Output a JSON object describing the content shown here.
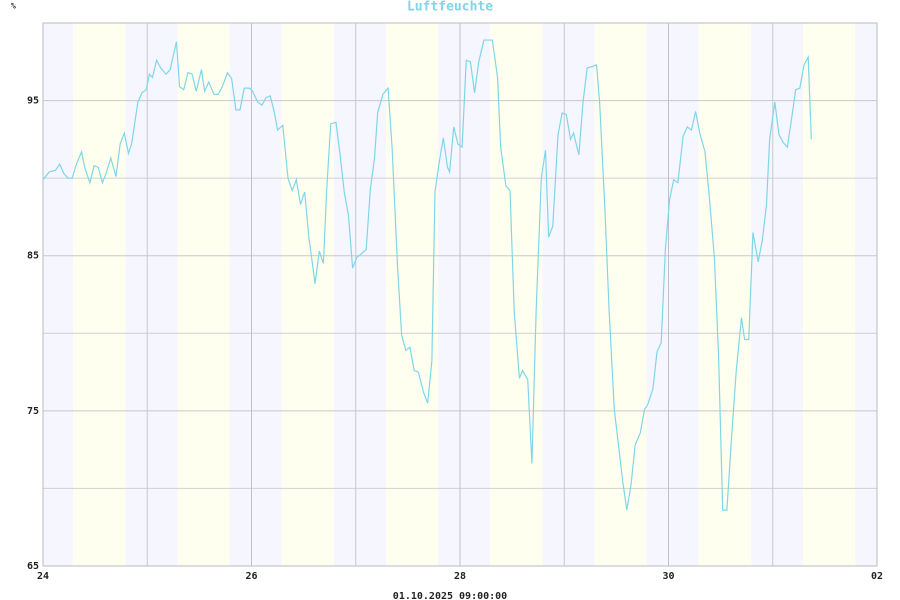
{
  "chart_data": {
    "type": "line",
    "title": "Luftfeuchte",
    "ylabel": "%",
    "xlabel": "01.10.2025 09:00:00",
    "color": "#7fd6e8",
    "grid": true,
    "xlim": [
      0,
      8
    ],
    "xticks": [
      {
        "value": 0,
        "label": "24"
      },
      {
        "value": 2,
        "label": "26"
      },
      {
        "value": 4,
        "label": "28"
      },
      {
        "value": 6,
        "label": "30"
      },
      {
        "value": 8,
        "label": "02"
      }
    ],
    "minor_xticks": [
      1,
      3,
      5,
      7
    ],
    "ylim": [
      65,
      100
    ],
    "yticks": [
      65,
      75,
      85,
      95
    ],
    "minor_yticks": [
      70,
      80,
      90
    ],
    "x": [
      0,
      0.06,
      0.12,
      0.16,
      0.2,
      0.24,
      0.28,
      0.32,
      0.37,
      0.4,
      0.45,
      0.49,
      0.53,
      0.57,
      0.61,
      0.65,
      0.7,
      0.74,
      0.78,
      0.82,
      0.85,
      0.91,
      0.95,
      0.99,
      1.02,
      1.05,
      1.09,
      1.13,
      1.18,
      1.22,
      1.28,
      1.31,
      1.35,
      1.39,
      1.43,
      1.47,
      1.52,
      1.55,
      1.59,
      1.64,
      1.68,
      1.72,
      1.77,
      1.81,
      1.85,
      1.89,
      1.93,
      1.98,
      2.01,
      2.06,
      2.1,
      2.14,
      2.18,
      2.22,
      2.25,
      2.3,
      2.35,
      2.39,
      2.43,
      2.47,
      2.51,
      2.55,
      2.61,
      2.65,
      2.69,
      2.72,
      2.76,
      2.81,
      2.85,
      2.89,
      2.93,
      2.97,
      3.01,
      3.05,
      3.1,
      3.14,
      3.18,
      3.21,
      3.26,
      3.31,
      3.35,
      3.4,
      3.44,
      3.48,
      3.52,
      3.56,
      3.6,
      3.65,
      3.69,
      3.73,
      3.76,
      3.8,
      3.84,
      3.88,
      3.9,
      3.94,
      3.98,
      4.02,
      4.06,
      4.1,
      4.14,
      4.18,
      4.23,
      4.27,
      4.31,
      4.36,
      4.39,
      4.44,
      4.48,
      4.52,
      4.57,
      4.6,
      4.65,
      4.69,
      4.73,
      4.78,
      4.82,
      4.85,
      4.89,
      4.94,
      4.98,
      5.02,
      5.06,
      5.09,
      5.14,
      5.18,
      5.22,
      5.27,
      5.31,
      5.34,
      5.39,
      5.43,
      5.48,
      5.52,
      5.56,
      5.6,
      5.64,
      5.68,
      5.73,
      5.77,
      5.8,
      5.85,
      5.89,
      5.93,
      5.97,
      6.01,
      6.05,
      6.09,
      6.14,
      6.18,
      6.22,
      6.26,
      6.3,
      6.35,
      6.39,
      6.44,
      6.48,
      6.52,
      6.56,
      6.6,
      6.65,
      6.7,
      6.73,
      6.77,
      6.81,
      6.86,
      6.9,
      6.94,
      6.97,
      7.02,
      7.06,
      7.1,
      7.14,
      7.18,
      7.22,
      7.26,
      7.3,
      7.34,
      7.37
    ],
    "values": [
      89.9,
      90.4,
      90.5,
      90.9,
      90.3,
      90.0,
      90.0,
      90.9,
      91.7,
      90.7,
      89.7,
      90.8,
      90.7,
      89.7,
      90.4,
      91.3,
      90.1,
      92.2,
      92.9,
      91.6,
      92.2,
      94.9,
      95.5,
      95.7,
      96.7,
      96.5,
      97.6,
      97.1,
      96.7,
      97.0,
      98.8,
      95.9,
      95.7,
      96.8,
      96.7,
      95.6,
      97.0,
      95.6,
      96.2,
      95.4,
      95.4,
      95.9,
      96.8,
      96.4,
      94.4,
      94.4,
      95.8,
      95.8,
      95.6,
      94.9,
      94.7,
      95.2,
      95.3,
      94.2,
      93.1,
      93.4,
      90.0,
      89.2,
      89.9,
      88.3,
      89.1,
      86.2,
      83.2,
      85.3,
      84.5,
      89.1,
      93.5,
      93.6,
      91.5,
      89.1,
      87.6,
      84.2,
      84.9,
      85.1,
      85.4,
      89.3,
      91.3,
      94.2,
      95.4,
      95.8,
      91.8,
      84.4,
      79.9,
      78.9,
      79.1,
      77.6,
      77.5,
      76.2,
      75.5,
      78.2,
      89.1,
      91.0,
      92.6,
      90.7,
      90.4,
      93.3,
      92.2,
      92.0,
      97.6,
      97.5,
      95.5,
      97.5,
      98.9,
      98.9,
      98.9,
      96.5,
      92.0,
      89.5,
      89.2,
      81.4,
      77.1,
      77.6,
      77.0,
      71.6,
      81.4,
      90.0,
      91.8,
      86.2,
      86.9,
      92.8,
      94.2,
      94.1,
      92.5,
      92.9,
      91.5,
      94.9,
      97.1,
      97.2,
      97.3,
      94.8,
      88.0,
      81.5,
      75.1,
      72.8,
      70.5,
      68.6,
      70.2,
      72.8,
      73.6,
      75.1,
      75.4,
      76.4,
      78.8,
      79.4,
      85.4,
      88.6,
      89.9,
      89.7,
      92.7,
      93.3,
      93.1,
      94.3,
      92.9,
      91.7,
      88.9,
      84.9,
      78.6,
      68.6,
      68.6,
      72.8,
      77.6,
      81.0,
      79.6,
      79.6,
      86.5,
      84.6,
      86.0,
      88.3,
      92.5,
      94.9,
      92.8,
      92.3,
      92.0,
      93.8,
      95.7,
      95.8,
      97.3,
      97.8,
      92.5
    ]
  }
}
